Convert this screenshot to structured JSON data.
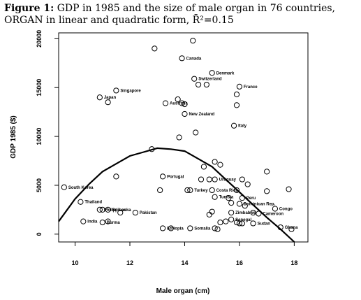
{
  "caption": {
    "figure_label": "Figure 1:",
    "text": "GDP in 1985 and the size of male organ in 76 countries, ORGAN in linear and quadratic form, R̄²=0.15"
  },
  "chart_data": {
    "type": "scatter",
    "xlabel": "Male organ (cm)",
    "ylabel": "GDP 1985 ($)",
    "xlim": [
      9.4,
      18.5
    ],
    "ylim": [
      -800,
      20600
    ],
    "x_ticks": [
      10,
      12,
      14,
      16,
      18
    ],
    "y_ticks": [
      0,
      5000,
      10000,
      15000,
      20000
    ],
    "grid": false,
    "points": [
      {
        "x": 14.3,
        "y": 19800,
        "label": ""
      },
      {
        "x": 12.9,
        "y": 19000,
        "label": ""
      },
      {
        "x": 13.9,
        "y": 18000,
        "label": "Canada"
      },
      {
        "x": 15.0,
        "y": 16500,
        "label": "Denmark"
      },
      {
        "x": 14.35,
        "y": 15900,
        "label": "Switzerland"
      },
      {
        "x": 14.5,
        "y": 15300,
        "label": ""
      },
      {
        "x": 14.8,
        "y": 15300,
        "label": ""
      },
      {
        "x": 16.0,
        "y": 15100,
        "label": "France"
      },
      {
        "x": 11.5,
        "y": 14700,
        "label": "Singapore"
      },
      {
        "x": 15.9,
        "y": 14300,
        "label": ""
      },
      {
        "x": 10.9,
        "y": 14000,
        "label": "Japan"
      },
      {
        "x": 13.75,
        "y": 13800,
        "label": ""
      },
      {
        "x": 11.2,
        "y": 13500,
        "label": ""
      },
      {
        "x": 13.3,
        "y": 13400,
        "label": "Australia"
      },
      {
        "x": 13.9,
        "y": 13400,
        "label": ""
      },
      {
        "x": 14.0,
        "y": 13300,
        "label": ""
      },
      {
        "x": 15.9,
        "y": 13200,
        "label": ""
      },
      {
        "x": 14.0,
        "y": 12300,
        "label": "New Zealand"
      },
      {
        "x": 15.8,
        "y": 11100,
        "label": "Italy"
      },
      {
        "x": 14.4,
        "y": 10400,
        "label": ""
      },
      {
        "x": 13.8,
        "y": 9900,
        "label": ""
      },
      {
        "x": 12.8,
        "y": 8700,
        "label": ""
      },
      {
        "x": 15.1,
        "y": 7400,
        "label": ""
      },
      {
        "x": 14.7,
        "y": 6900,
        "label": ""
      },
      {
        "x": 15.3,
        "y": 7100,
        "label": ""
      },
      {
        "x": 17.0,
        "y": 6400,
        "label": ""
      },
      {
        "x": 11.5,
        "y": 5900,
        "label": ""
      },
      {
        "x": 13.2,
        "y": 5900,
        "label": "Portugal"
      },
      {
        "x": 14.6,
        "y": 5600,
        "label": ""
      },
      {
        "x": 14.9,
        "y": 5600,
        "label": ""
      },
      {
        "x": 15.1,
        "y": 5600,
        "label": "Uruguay"
      },
      {
        "x": 16.1,
        "y": 5600,
        "label": ""
      },
      {
        "x": 16.3,
        "y": 5100,
        "label": ""
      },
      {
        "x": 9.6,
        "y": 4800,
        "label": "South Korea"
      },
      {
        "x": 13.1,
        "y": 4500,
        "label": ""
      },
      {
        "x": 14.1,
        "y": 4500,
        "label": ""
      },
      {
        "x": 14.2,
        "y": 4500,
        "label": "Turkey"
      },
      {
        "x": 15.0,
        "y": 4500,
        "label": "Costa Rica"
      },
      {
        "x": 15.9,
        "y": 4500,
        "label": ""
      },
      {
        "x": 17.0,
        "y": 4400,
        "label": ""
      },
      {
        "x": 17.8,
        "y": 4600,
        "label": ""
      },
      {
        "x": 15.1,
        "y": 3800,
        "label": "Tunisia"
      },
      {
        "x": 15.6,
        "y": 3700,
        "label": ""
      },
      {
        "x": 16.1,
        "y": 3700,
        "label": "Peru"
      },
      {
        "x": 15.7,
        "y": 3200,
        "label": ""
      },
      {
        "x": 16.0,
        "y": 3100,
        "label": "Dominican Rep."
      },
      {
        "x": 16.2,
        "y": 2900,
        "label": ""
      },
      {
        "x": 10.2,
        "y": 3300,
        "label": "Thailand"
      },
      {
        "x": 10.9,
        "y": 2500,
        "label": "Philippines"
      },
      {
        "x": 11.0,
        "y": 2500,
        "label": ""
      },
      {
        "x": 11.2,
        "y": 2500,
        "label": "Sri Lanka"
      },
      {
        "x": 11.65,
        "y": 2200,
        "label": ""
      },
      {
        "x": 12.2,
        "y": 2200,
        "label": "Pakistan"
      },
      {
        "x": 17.3,
        "y": 2600,
        "label": "Congo"
      },
      {
        "x": 14.9,
        "y": 2000,
        "label": ""
      },
      {
        "x": 15.0,
        "y": 2300,
        "label": ""
      },
      {
        "x": 15.7,
        "y": 2200,
        "label": "Zimbabwe"
      },
      {
        "x": 16.5,
        "y": 2200,
        "label": ""
      },
      {
        "x": 16.7,
        "y": 2100,
        "label": "Cameroon"
      },
      {
        "x": 10.3,
        "y": 1300,
        "label": "India"
      },
      {
        "x": 11.0,
        "y": 1200,
        "label": "Burma"
      },
      {
        "x": 11.2,
        "y": 1300,
        "label": ""
      },
      {
        "x": 15.3,
        "y": 1200,
        "label": ""
      },
      {
        "x": 15.5,
        "y": 1300,
        "label": ""
      },
      {
        "x": 15.7,
        "y": 1500,
        "label": "Senegal"
      },
      {
        "x": 15.9,
        "y": 1200,
        "label": ""
      },
      {
        "x": 16.0,
        "y": 1100,
        "label": ""
      },
      {
        "x": 16.1,
        "y": 1100,
        "label": ""
      },
      {
        "x": 16.5,
        "y": 1100,
        "label": "Sudan"
      },
      {
        "x": 17.5,
        "y": 700,
        "label": "Ghana"
      },
      {
        "x": 17.9,
        "y": 500,
        "label": ""
      },
      {
        "x": 13.5,
        "y": 600,
        "label": ""
      },
      {
        "x": 13.2,
        "y": 600,
        "label": "Ethiopia"
      },
      {
        "x": 14.2,
        "y": 600,
        "label": "Somalia"
      },
      {
        "x": 15.1,
        "y": 600,
        "label": ""
      },
      {
        "x": 15.2,
        "y": 500,
        "label": ""
      }
    ],
    "fit_line": {
      "x": [
        9.4,
        10.0,
        10.5,
        11.0,
        11.5,
        12.0,
        12.5,
        13.0,
        13.5,
        14.0,
        14.5,
        15.0,
        15.5,
        16.0,
        16.5,
        17.0,
        17.5,
        18.0
      ],
      "y": [
        1300,
        3600,
        5100,
        6400,
        7200,
        8000,
        8400,
        8800,
        8700,
        8500,
        7700,
        6900,
        5600,
        4300,
        3000,
        1700,
        500,
        -800
      ]
    },
    "colors": {
      "marker": "#000000",
      "line": "#000000"
    }
  }
}
